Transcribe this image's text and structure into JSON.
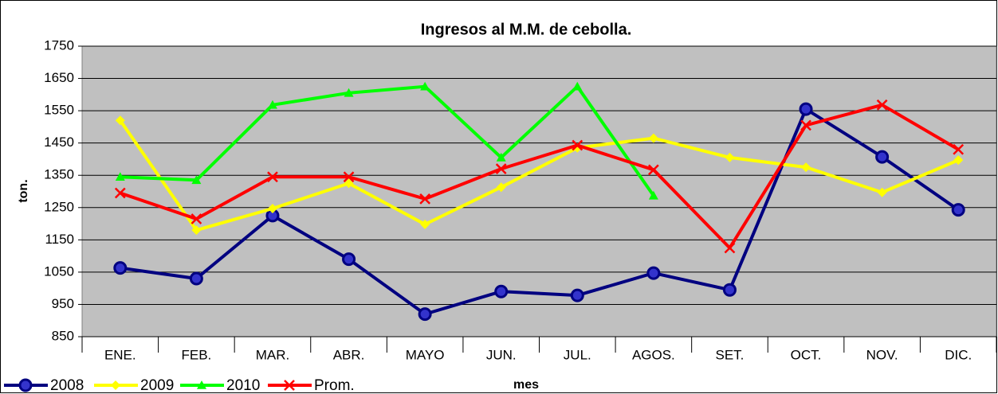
{
  "chart_data": {
    "type": "line",
    "title": "Ingresos al M.M. de cebolla.",
    "x_label": "mes",
    "y_label": "ton.",
    "categories": [
      "ENE.",
      "FEB.",
      "MAR.",
      "ABR.",
      "MAYO",
      "JUN.",
      "JUL.",
      "AGOS.",
      "SET.",
      "OCT.",
      "NOV.",
      "DIC."
    ],
    "series": [
      {
        "name": "2008",
        "color": "#000080",
        "marker": "circle",
        "values": [
          1063,
          1030,
          1225,
          1090,
          920,
          990,
          978,
          1047,
          995,
          1555,
          1407,
          1243
        ]
      },
      {
        "name": "2009",
        "color": "#ffff00",
        "marker": "diamond",
        "values": [
          1520,
          1180,
          1247,
          1325,
          1198,
          1313,
          1435,
          1465,
          1405,
          1375,
          1297,
          1397
        ]
      },
      {
        "name": "2010",
        "color": "#00ff00",
        "marker": "triangle",
        "values": [
          1345,
          1335,
          1568,
          1605,
          1625,
          1405,
          1625,
          1287,
          null,
          null,
          null,
          null
        ]
      },
      {
        "name": "Prom.",
        "color": "#ff0000",
        "marker": "x",
        "values": [
          1295,
          1215,
          1345,
          1345,
          1277,
          1370,
          1443,
          1367,
          1125,
          1505,
          1568,
          1430
        ]
      }
    ],
    "ylim": [
      850,
      1750
    ],
    "yticks": [
      850,
      950,
      1050,
      1150,
      1250,
      1350,
      1450,
      1550,
      1650,
      1750
    ],
    "grid": true,
    "legend": "bottom-left"
  }
}
